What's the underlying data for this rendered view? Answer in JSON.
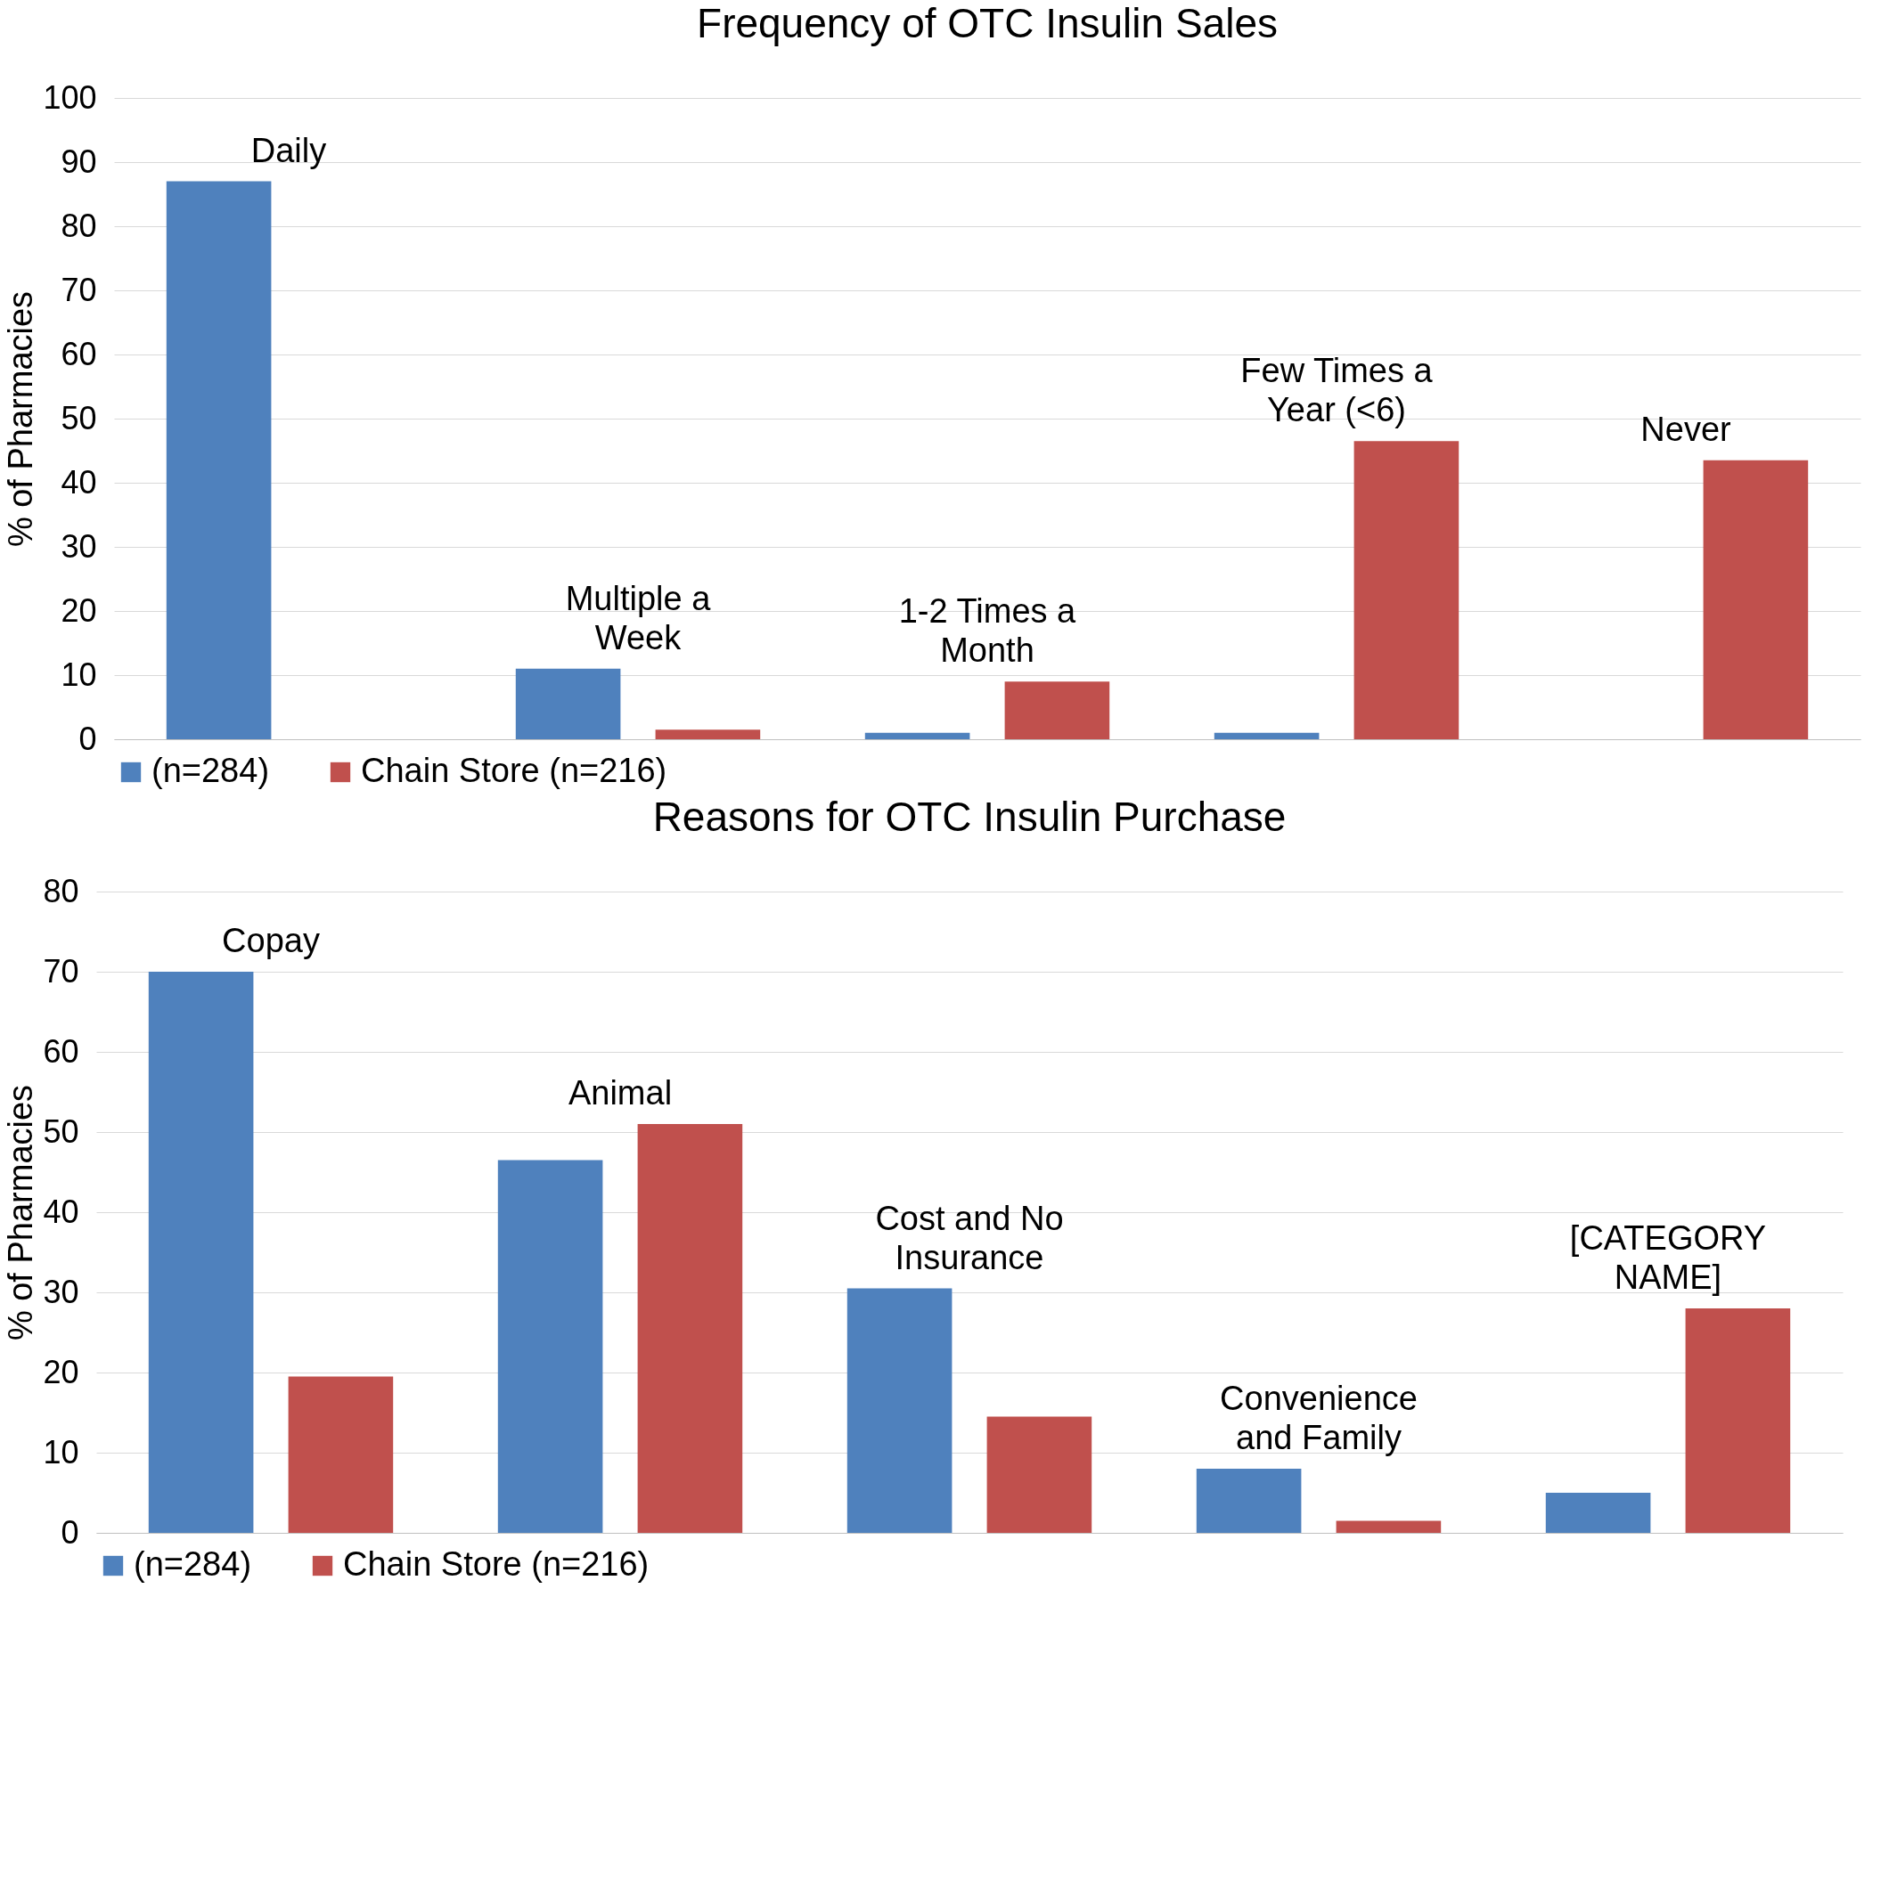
{
  "chart_data": [
    {
      "type": "bar",
      "title": "Frequency of OTC Insulin Sales",
      "ylabel": "% of Pharmacies",
      "categories": [
        "Daily",
        "Multiple a Week",
        "1-2 Times a Month",
        "Few Times a Year (<6)",
        "Never"
      ],
      "ylim": [
        0,
        100
      ],
      "yticks": [
        0,
        10,
        20,
        30,
        40,
        50,
        60,
        70,
        80,
        90,
        100
      ],
      "grid": "y",
      "legend": "bottom",
      "series": [
        {
          "name": "(n=284)",
          "color": "#4f81bd",
          "values": [
            87,
            11,
            1,
            1,
            0
          ]
        },
        {
          "name": "Chain Store (n=216)",
          "color": "#c0504d",
          "values": [
            0,
            1.5,
            9,
            46.5,
            43.5
          ]
        }
      ]
    },
    {
      "type": "bar",
      "title": "Reasons for OTC Insulin Purchase",
      "ylabel": "% of Pharmacies",
      "categories": [
        "Copay",
        "Animal",
        "Cost and No Insurance",
        "Convenience and Family",
        "[CATEGORY NAME]"
      ],
      "ylim": [
        0,
        80
      ],
      "yticks": [
        0,
        10,
        20,
        30,
        40,
        50,
        60,
        70,
        80
      ],
      "grid": "y",
      "legend": "bottom",
      "series": [
        {
          "name": "(n=284)",
          "color": "#4f81bd",
          "values": [
            70,
            46.5,
            30.5,
            8,
            5
          ]
        },
        {
          "name": "Chain Store (n=216)",
          "color": "#c0504d",
          "values": [
            19.5,
            51,
            14.5,
            1.5,
            28
          ]
        }
      ]
    }
  ]
}
